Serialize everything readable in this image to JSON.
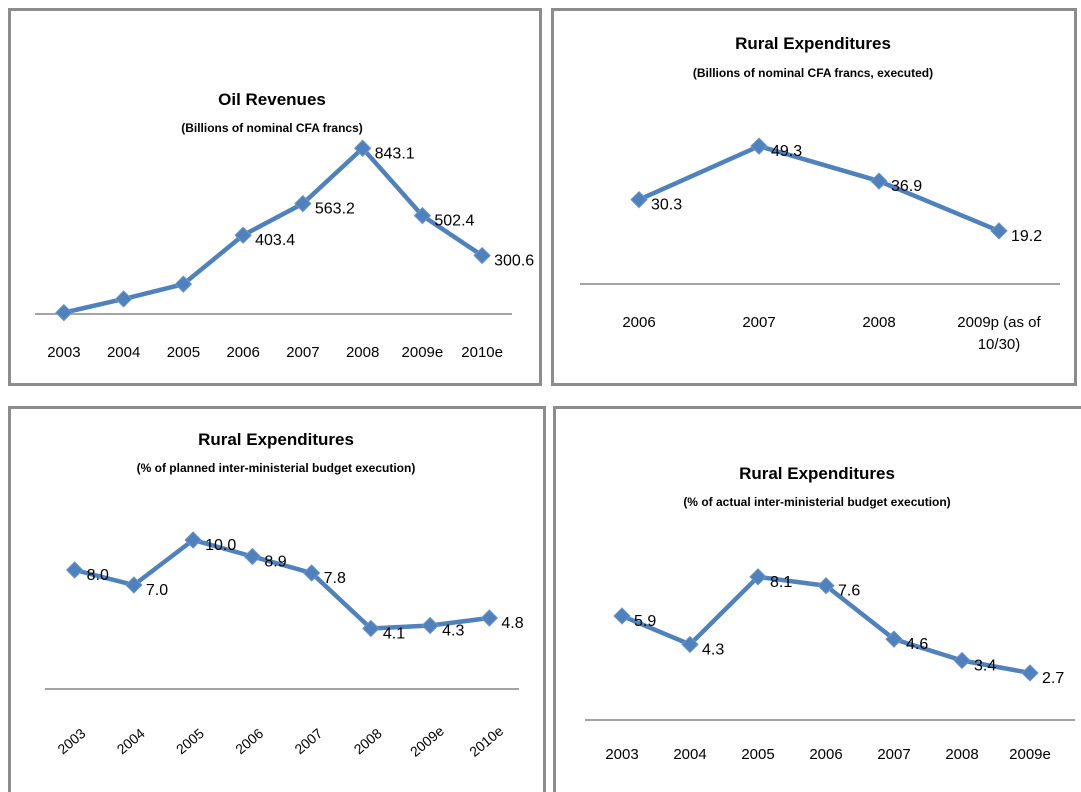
{
  "chart_data": [
    {
      "type": "line",
      "title": "Oil Revenues",
      "subtitle": "(Billions of nominal CFA francs)",
      "categories": [
        "2003",
        "2004",
        "2005",
        "2006",
        "2007",
        "2008",
        "2009e",
        "2010e"
      ],
      "values": [
        12,
        81,
        156,
        403.4,
        563.2,
        843.1,
        502.4,
        300.6
      ],
      "value_labels": [
        null,
        null,
        null,
        "403.4",
        "563.2",
        "843.1",
        "502.4",
        "300.6"
      ],
      "color": "#4f81bd",
      "ylim": [
        0,
        900
      ]
    },
    {
      "type": "line",
      "title": "Rural Expenditures",
      "subtitle": "(Billions of nominal CFA francs, executed)",
      "categories": [
        "2006",
        "2007",
        "2008",
        "2009p (as of 10/30)"
      ],
      "values": [
        30.3,
        49.3,
        36.9,
        19.2
      ],
      "color": "#4f81bd",
      "ylim": [
        0,
        60
      ]
    },
    {
      "type": "line",
      "title": "Rural Expenditures",
      "subtitle": "(% of planned inter-ministerial budget execution)",
      "categories": [
        "2003",
        "2004",
        "2005",
        "2006",
        "2007",
        "2008",
        "2009e",
        "2010e"
      ],
      "values": [
        8.0,
        7.0,
        10.0,
        8.9,
        7.8,
        4.1,
        4.3,
        4.8
      ],
      "value_labels": [
        "8.0",
        "7.0",
        "10.0",
        "8.9",
        "7.8",
        "4.1",
        "4.3",
        "4.8"
      ],
      "color": "#4f81bd",
      "ylim": [
        0,
        12
      ],
      "rotated_categories": true
    },
    {
      "type": "line",
      "title": "Rural Expenditures",
      "subtitle": "(% of actual inter-ministerial budget execution)",
      "categories": [
        "2003",
        "2004",
        "2005",
        "2006",
        "2007",
        "2008",
        "2009e"
      ],
      "values": [
        5.9,
        4.3,
        8.1,
        7.6,
        4.6,
        3.4,
        2.7
      ],
      "color": "#4f81bd",
      "ylim": [
        0,
        10
      ]
    }
  ]
}
